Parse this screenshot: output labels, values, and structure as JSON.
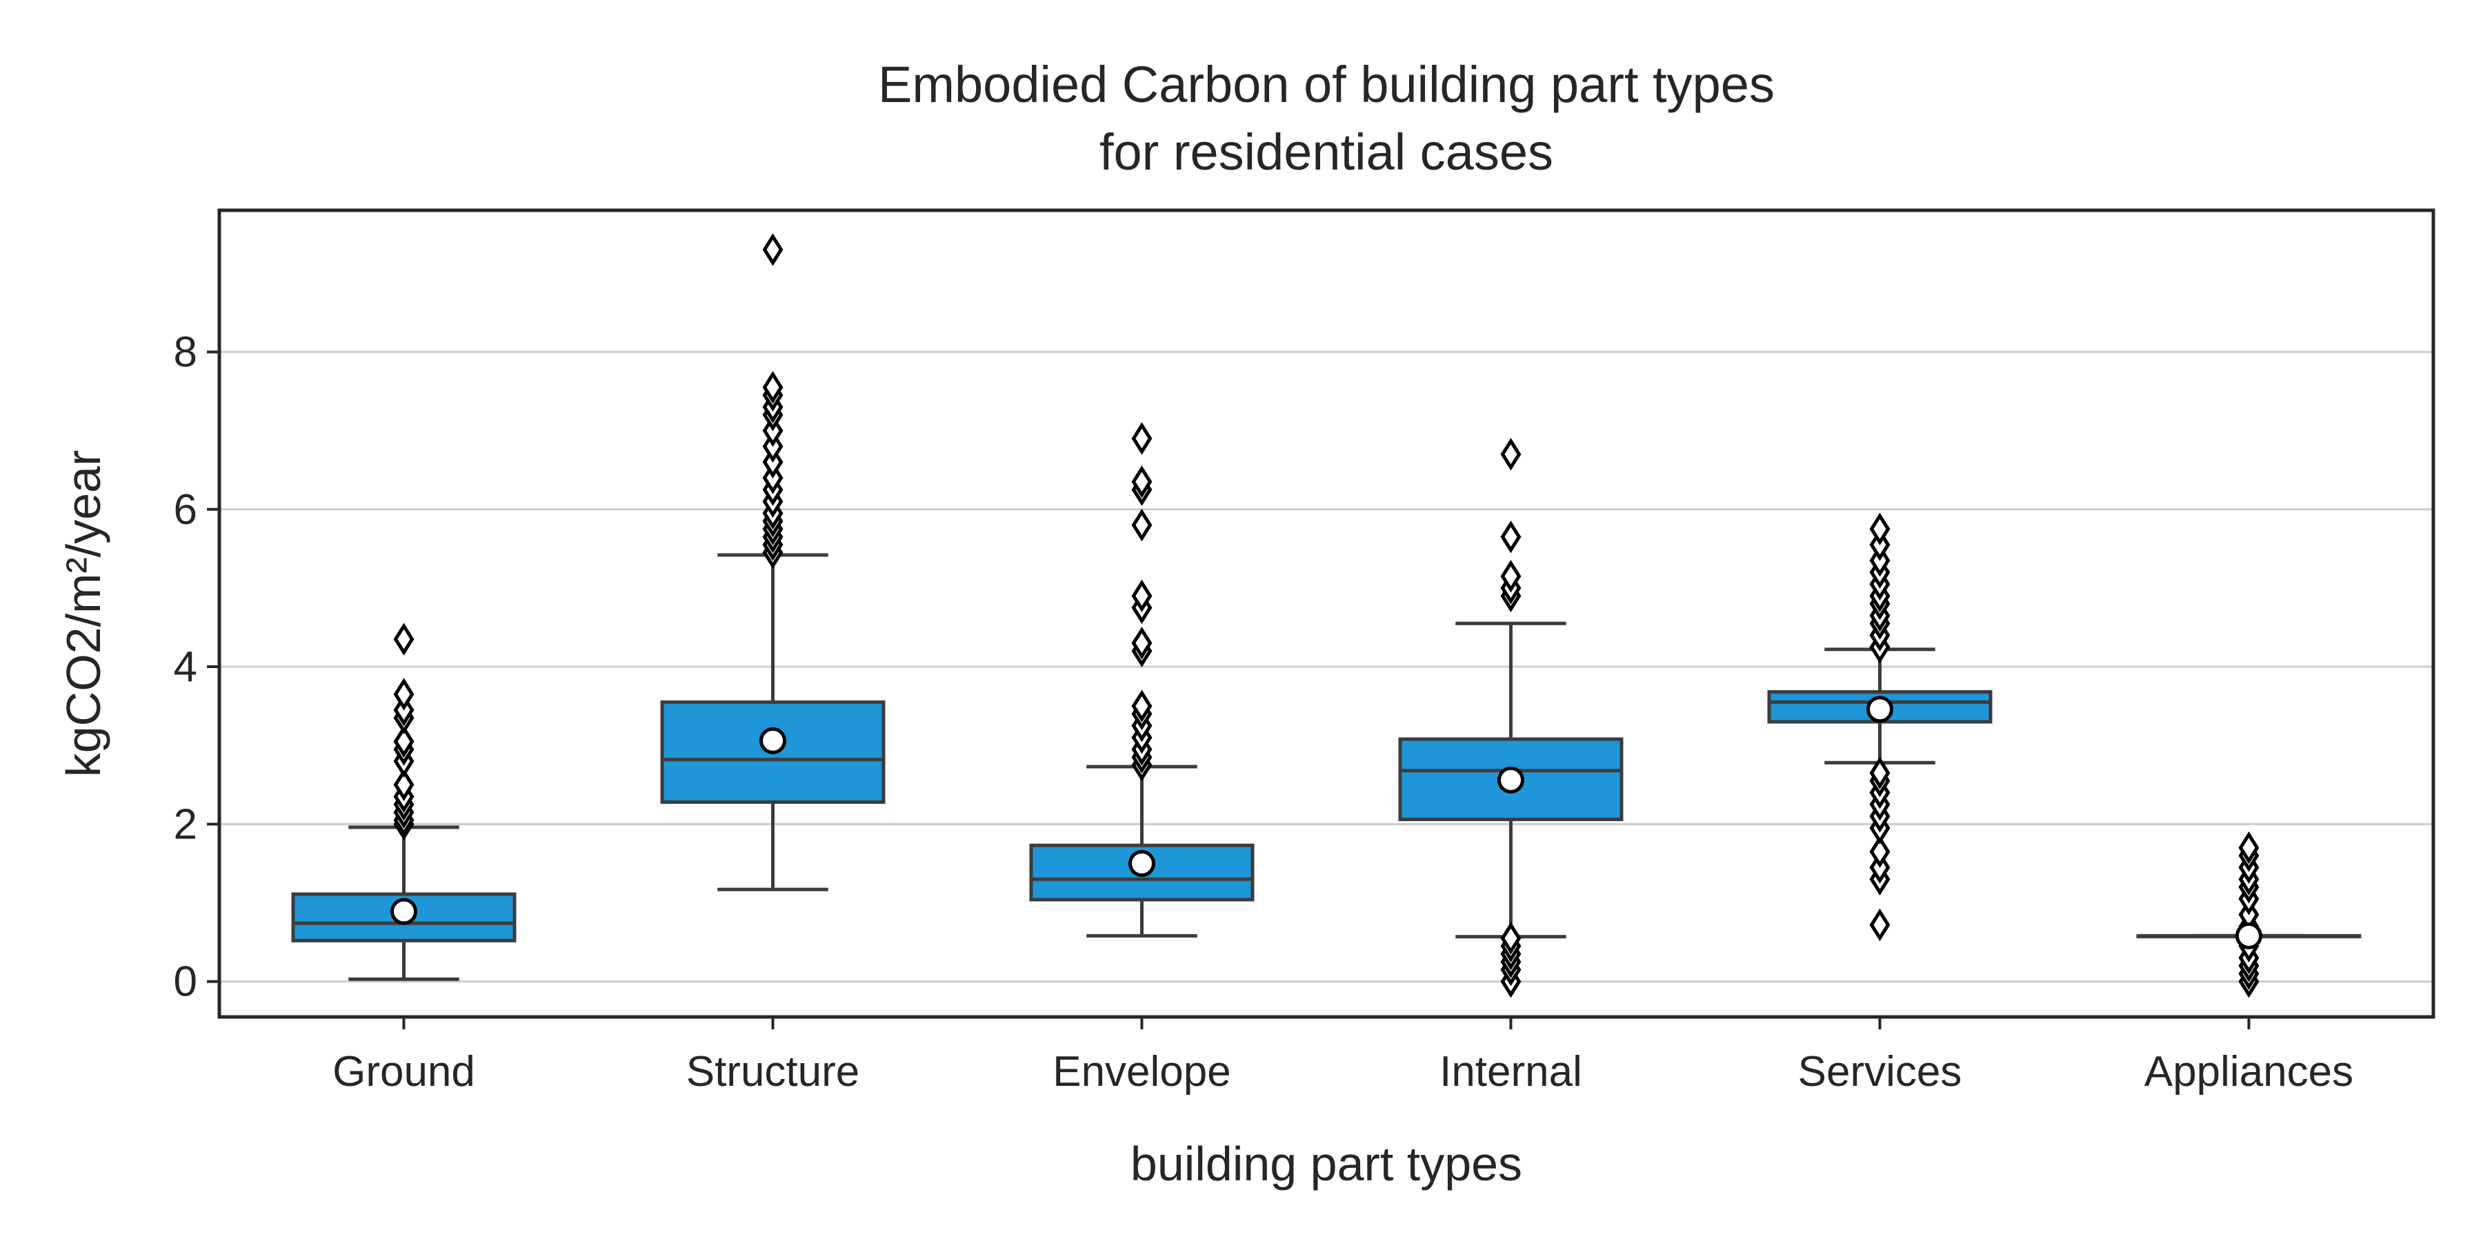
{
  "chart_data": {
    "type": "box",
    "title": [
      "Embodied Carbon of building part types",
      "for residential cases"
    ],
    "xlabel": "building part types",
    "ylabel": "kgCO2/m²/year",
    "ylim": [
      -0.45,
      9.8
    ],
    "yticks": [
      0,
      2,
      4,
      6,
      8
    ],
    "grid": "y",
    "colors": {
      "box": "#1e96d8",
      "line": "#3c3c3c",
      "grid": "#cccccc",
      "mean": "#ffffff",
      "flier": "#000000"
    },
    "categories": [
      "Ground",
      "Structure",
      "Envelope",
      "Internal",
      "Services",
      "Appliances"
    ],
    "boxes": [
      {
        "whislo": 0.03,
        "q1": 0.52,
        "med": 0.74,
        "q3": 1.11,
        "whishi": 1.96,
        "mean": 0.89,
        "fliers": [
          2.0,
          2.05,
          2.15,
          2.25,
          2.35,
          2.5,
          2.8,
          2.95,
          3.05,
          3.35,
          3.45,
          3.65,
          4.35
        ]
      },
      {
        "whislo": 1.17,
        "q1": 2.28,
        "med": 2.82,
        "q3": 3.55,
        "whishi": 5.42,
        "mean": 3.06,
        "fliers": [
          5.45,
          5.55,
          5.65,
          5.75,
          5.85,
          5.95,
          6.1,
          6.25,
          6.4,
          6.6,
          6.8,
          7.0,
          7.2,
          7.3,
          7.45,
          7.55,
          9.3
        ]
      },
      {
        "whislo": 0.58,
        "q1": 1.04,
        "med": 1.3,
        "q3": 1.73,
        "whishi": 2.73,
        "mean": 1.5,
        "fliers": [
          2.75,
          2.85,
          2.95,
          3.1,
          3.25,
          3.4,
          3.5,
          4.2,
          4.3,
          4.75,
          4.9,
          5.8,
          6.25,
          6.35,
          6.9
        ]
      },
      {
        "whislo": 0.57,
        "q1": 2.06,
        "med": 2.68,
        "q3": 3.08,
        "whishi": 4.55,
        "mean": 2.56,
        "fliers": [
          0.0,
          0.15,
          0.25,
          0.35,
          0.45,
          0.55,
          4.9,
          5.0,
          5.15,
          5.65,
          6.7
        ]
      },
      {
        "whislo": 2.78,
        "q1": 3.3,
        "med": 3.55,
        "q3": 3.68,
        "whishi": 4.22,
        "mean": 3.46,
        "fliers": [
          0.72,
          1.3,
          1.45,
          1.65,
          1.95,
          2.1,
          2.25,
          2.4,
          2.55,
          2.65,
          4.25,
          4.4,
          4.55,
          4.65,
          4.8,
          4.9,
          5.05,
          5.2,
          5.35,
          5.55,
          5.75
        ]
      },
      {
        "whislo": 0.58,
        "q1": 0.58,
        "med": 0.58,
        "q3": 0.58,
        "whishi": 0.58,
        "mean": 0.58,
        "fliers": [
          0.0,
          0.1,
          0.2,
          0.3,
          0.45,
          0.7,
          0.85,
          1.05,
          1.2,
          1.3,
          1.45,
          1.6,
          1.7
        ]
      }
    ]
  }
}
